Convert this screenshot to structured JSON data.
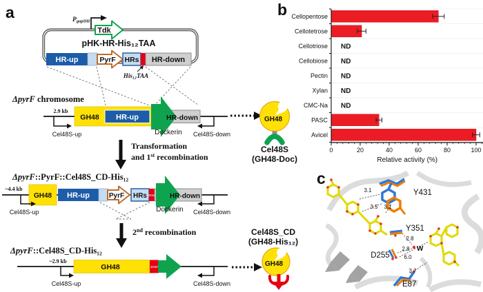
{
  "figure": {
    "panel_a_label": "a",
    "panel_b_label": "b",
    "panel_c_label": "c"
  },
  "panel_a": {
    "plasmid": {
      "promoter_main": "P",
      "promoter_sub": "gapDH",
      "tdk": "Tdk",
      "name": "pHK-HR-His₁₂TAA",
      "hr_up": "HR-up",
      "pyrf": "PyrF",
      "hrs": "HRs",
      "hr_down": "HR-down",
      "his_tag": "His₁₂TAA"
    },
    "row1": {
      "title_italic": "ΔpyrF",
      "title_rest": " chromosome",
      "size_label": "2.9 kb",
      "gh48": "GH48",
      "hr_up": "HR-up",
      "hr_down": "HR-down",
      "dockerin": "Dockerin",
      "primer_left": "Cel48S-up",
      "primer_right": "Cel48S-down"
    },
    "step1": {
      "line1": "Transformation",
      "line2_pre": "and 1",
      "line2_sup": "st",
      "line2_post": " recombination"
    },
    "row2": {
      "title_italic": "ΔpyrF",
      "title_rest": "::PyrF::Cel48S_CD-His₁₂",
      "size_label": "~4.4 kb",
      "gh48": "GH48",
      "hr_up": "HR-up",
      "pyrf": "PyrF",
      "hrs": "HRs",
      "stop": "STOP",
      "hr_down": "HR-down",
      "dockerin": "Dockerin",
      "primer_left": "Cel48S-up",
      "primer_right": "Cel48S-down"
    },
    "step2": {
      "pre": "2",
      "sup": "nd",
      "post": " recombination"
    },
    "row3": {
      "title_italic": "ΔpyrF",
      "title_rest": "::Cel48S_CD-His₁₂",
      "size_label": "~2.9 kb",
      "gh48": "GH48",
      "stop": "STOP",
      "primer_left": "Cel48S-up",
      "primer_right": "Cel48S-down"
    },
    "product1": {
      "domain": "GH48",
      "name": "Cel48S",
      "desc": "(GH48-Doc)"
    },
    "product2": {
      "domain": "GH48",
      "name": "Cel48S_CD",
      "desc": "(GH48-His₁₂)"
    }
  },
  "chart_data": {
    "type": "bar",
    "orientation": "horizontal",
    "categories": [
      "Cellopentose",
      "Cellotetrose",
      "Cellotriose",
      "Cellobiose",
      "Pectin",
      "Xylan",
      "CMC-Na",
      "PASC",
      "Avicel"
    ],
    "values": [
      74,
      21,
      null,
      null,
      null,
      null,
      null,
      33,
      100
    ],
    "value_labels": [
      null,
      null,
      "ND",
      "ND",
      "ND",
      "ND",
      "ND",
      null,
      null
    ],
    "errors": [
      4,
      3,
      null,
      null,
      null,
      null,
      null,
      2,
      2.5
    ],
    "xlabel": "Relative activity (%)",
    "xlim": [
      0,
      105
    ],
    "xticks": [
      0,
      20,
      40,
      60,
      80,
      100
    ],
    "grid": true,
    "legend": "none",
    "bar_color": "#EC1C24"
  },
  "panel_c": {
    "residues": {
      "y431": "Y431",
      "y351": "Y351",
      "d255": "D255",
      "e87": "E87"
    },
    "water": "W",
    "distances": {
      "d1": "3.1",
      "d2": "3.5",
      "d3": "3.1",
      "d4": "2.8",
      "d5": "2.8",
      "d6": "6.0",
      "d7": "3.7"
    }
  },
  "colors": {
    "bar_red": "#EC1C24",
    "gene_yellow": "#FFE105",
    "hr_blue": "#1C5CA8",
    "light_blue": "#C5DCF0",
    "dockerin_green": "#0FA34F",
    "pyrf_orange": "#BF6B2A",
    "stop_red": "#E60012",
    "hr_gray": "#CFCFCF",
    "stick_yellow": "#DFDA00",
    "stick_blue": "#2E79D8",
    "stick_orange": "#F07D00",
    "oxygen_red": "#E8312A"
  }
}
